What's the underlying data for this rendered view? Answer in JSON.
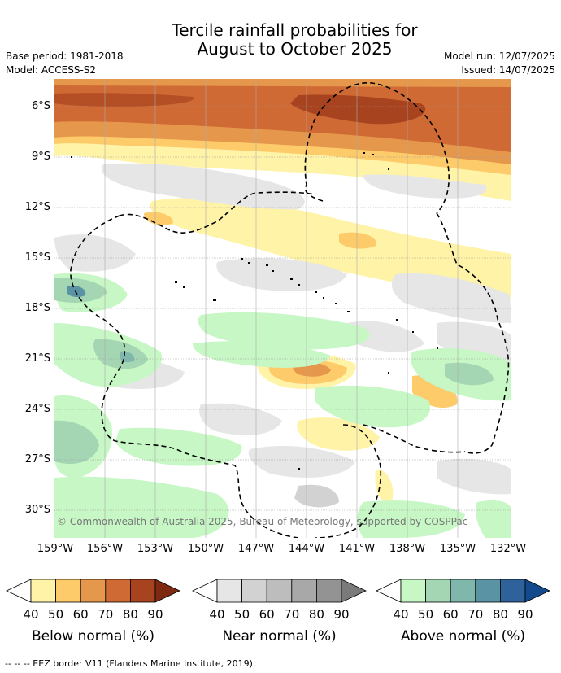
{
  "header": {
    "title_line1": "Tercile rainfall probabilities for",
    "title_line2": "August to October 2025",
    "base_period": "Base period: 1981-2018",
    "model": "Model: ACCESS-S2",
    "model_run": "Model run: 12/07/2025",
    "issued": "Issued: 14/07/2025"
  },
  "map": {
    "y_ticks": [
      "6°S",
      "9°S",
      "12°S",
      "15°S",
      "18°S",
      "21°S",
      "24°S",
      "27°S",
      "30°S"
    ],
    "x_ticks": [
      "159°W",
      "156°W",
      "153°W",
      "150°W",
      "147°W",
      "144°W",
      "141°W",
      "138°W",
      "135°W",
      "132°W"
    ],
    "copyright": "© Commonwealth of Australia 2025, Bureau of Meteorology, supported by COSPPac"
  },
  "colorbars": [
    {
      "title": "Below normal (%)",
      "ticks": [
        "40",
        "50",
        "60",
        "70",
        "80",
        "90"
      ],
      "colors": [
        "#fff3a8",
        "#fdcb6a",
        "#e5974b",
        "#cf6a34",
        "#a7431f",
        "#7e2a12"
      ]
    },
    {
      "title": "Near normal (%)",
      "ticks": [
        "40",
        "50",
        "60",
        "70",
        "80",
        "90"
      ],
      "colors": [
        "#e6e6e6",
        "#d2d2d2",
        "#bdbdbd",
        "#a8a8a8",
        "#939393",
        "#7a7a7a"
      ]
    },
    {
      "title": "Above normal (%)",
      "ticks": [
        "40",
        "50",
        "60",
        "70",
        "80",
        "90"
      ],
      "colors": [
        "#c7f7c5",
        "#a4d6b3",
        "#7fb7ad",
        "#5a93a3",
        "#2f619a",
        "#134a8e"
      ]
    }
  ],
  "footer": "--  --  -- EEZ border V11 (Flanders Marine Institute, 2019)."
}
